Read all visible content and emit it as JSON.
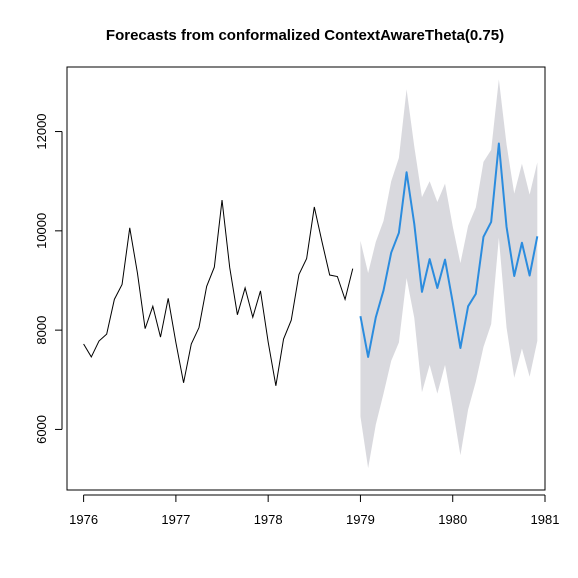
{
  "chart_data": {
    "type": "line",
    "title": "Forecasts from conformalized ContextAwareTheta(0.75)",
    "xlabel": "",
    "ylabel": "",
    "xlim": [
      1975.82,
      1981.0
    ],
    "ylim": [
      4780,
      13300
    ],
    "x_ticks": [
      1976,
      1977,
      1978,
      1979,
      1980,
      1981
    ],
    "y_ticks": [
      6000,
      8000,
      10000,
      12000
    ],
    "legend": "none",
    "grid": false,
    "colors": {
      "history": "#000000",
      "forecast": "#2b8cde",
      "interval": "#d9d9de"
    },
    "history": {
      "start": 1976.0,
      "step": 0.0833333,
      "values": [
        7720,
        7460,
        7780,
        7920,
        8620,
        8920,
        10060,
        9150,
        8030,
        8480,
        7860,
        8640,
        7750,
        6940,
        7720,
        8050,
        8880,
        9270,
        10620,
        9260,
        8310,
        8850,
        8260,
        8790,
        7760,
        6880,
        7820,
        8200,
        9120,
        9440,
        10480,
        9780,
        9110,
        9080,
        8620,
        9240
      ]
    },
    "forecast": {
      "start": 1979.0,
      "step": 0.0833333,
      "mean": [
        8280,
        7460,
        8260,
        8800,
        9560,
        9960,
        11180,
        10140,
        8770,
        9430,
        8850,
        9420,
        8560,
        7640,
        8480,
        8730,
        9880,
        10180,
        11760,
        10080,
        9090,
        9760,
        9100,
        9890
      ],
      "lower": [
        6260,
        5220,
        6100,
        6720,
        7380,
        7750,
        9050,
        8250,
        6750,
        7300,
        6720,
        7300,
        6430,
        5480,
        6400,
        6960,
        7660,
        8120,
        9860,
        8050,
        7040,
        7630,
        7060,
        7780
      ],
      "upper": [
        9800,
        9150,
        9780,
        10200,
        11000,
        11470,
        12850,
        11700,
        10680,
        11000,
        10580,
        10950,
        10090,
        9350,
        10100,
        10470,
        11390,
        11630,
        13050,
        11740,
        10750,
        11350,
        10730,
        11380
      ]
    }
  }
}
